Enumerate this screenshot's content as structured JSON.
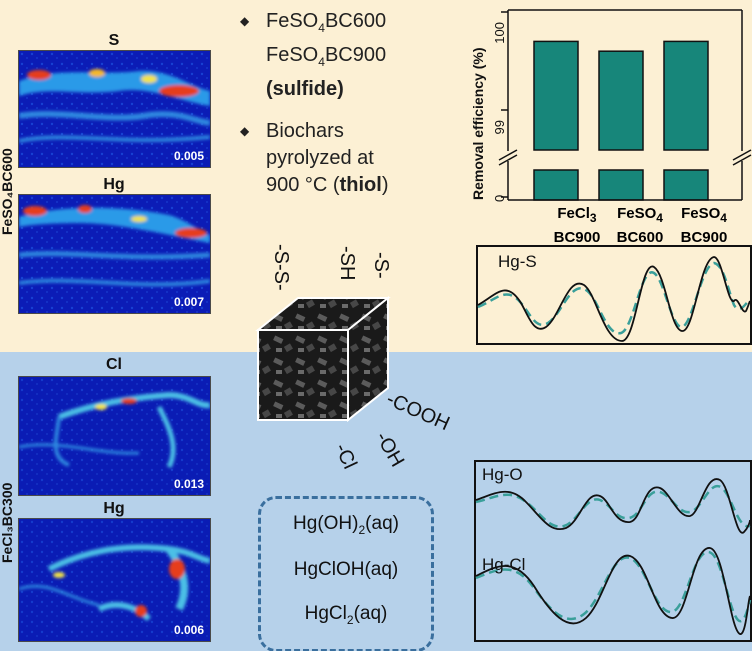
{
  "colors": {
    "top_bg": "#fcf0d4",
    "bottom_bg": "#b6d1ea",
    "bar": "#17867a",
    "fit_dash": "#3a9f9a",
    "dashed_box": "#3a6f9e"
  },
  "maps": {
    "top_sample_label": "FeSO₄BC600",
    "bottom_sample_label": "FeCl₃BC300",
    "panels": [
      {
        "element": "S",
        "value": "0.005"
      },
      {
        "element": "Hg",
        "value": "0.007"
      },
      {
        "element": "Cl",
        "value": "0.013"
      },
      {
        "element": "Hg",
        "value": "0.006"
      }
    ]
  },
  "bullets": [
    {
      "line1_pre": "FeSO",
      "line1_sub": "4",
      "line1_post": "BC600",
      "line2_pre": "FeSO",
      "line2_sub": "4",
      "line2_post": "BC900",
      "bold": "(sulfide)"
    },
    {
      "line1": "Biochars",
      "line2": "pyrolyzed at",
      "line3_pre": "900 °C (",
      "line3_bold": "thiol",
      "line3_post": ")"
    }
  ],
  "chart_data": {
    "type": "bar",
    "ylabel": "Removal efficiency (%)",
    "y_ticks": [
      "0",
      "99",
      "100"
    ],
    "y_axis_break": true,
    "categories": [
      {
        "line1_pre": "FeCl",
        "line1_sub": "3",
        "line2": "BC900"
      },
      {
        "line1_pre": "FeSO",
        "line1_sub": "4",
        "line2": "BC600"
      },
      {
        "line1_pre": "FeSO",
        "line1_sub": "4",
        "line2": "BC900"
      }
    ],
    "values": [
      99.7,
      99.6,
      99.7
    ],
    "ylim": [
      99.0,
      100.0
    ]
  },
  "functional_groups": {
    "top": [
      "-S-S-",
      "-SH",
      "-S-"
    ],
    "side": [
      "-COOH",
      "-OH",
      "-Cl"
    ]
  },
  "species_box": [
    {
      "pre": "Hg(OH)",
      "sub": "2",
      "post": "(aq)"
    },
    {
      "pre": "HgClOH(aq)",
      "sub": "",
      "post": ""
    },
    {
      "pre": "HgCl",
      "sub": "2",
      "post": "(aq)"
    }
  ],
  "exafs": {
    "top_label": "Hg-S",
    "mid_label": "Hg-O",
    "bottom_label": "Hg-Cl"
  }
}
